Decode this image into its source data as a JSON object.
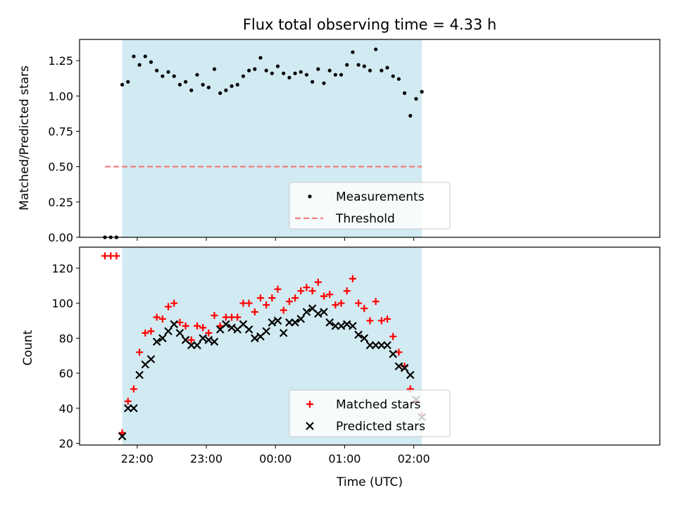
{
  "chart_data": [
    {
      "type": "scatter",
      "title": "Flux total observing time = 4.33 h",
      "xlabel": "",
      "ylabel": "Matched/Predicted stars",
      "ylim": [
        0,
        1.4
      ],
      "yticks": [
        "0.00",
        "0.25",
        "0.50",
        "0.75",
        "1.00",
        "1.25"
      ],
      "shaded_region": {
        "start": "21:47",
        "end": "02:07",
        "color": "#add8e6"
      },
      "legend": {
        "position": "lower-center",
        "entries": [
          "Measurements",
          "Threshold"
        ]
      },
      "series": [
        {
          "name": "Measurements",
          "marker": "dot",
          "color": "#000000",
          "points": [
            [
              "21:32",
              0.0
            ],
            [
              "21:37",
              0.0
            ],
            [
              "21:42",
              0.0
            ],
            [
              "21:47",
              1.08
            ],
            [
              "21:52",
              1.1
            ],
            [
              "21:57",
              1.28
            ],
            [
              "22:02",
              1.22
            ],
            [
              "22:07",
              1.28
            ],
            [
              "22:12",
              1.24
            ],
            [
              "22:17",
              1.18
            ],
            [
              "22:22",
              1.14
            ],
            [
              "22:27",
              1.17
            ],
            [
              "22:32",
              1.14
            ],
            [
              "22:37",
              1.08
            ],
            [
              "22:42",
              1.1
            ],
            [
              "22:47",
              1.04
            ],
            [
              "22:52",
              1.15
            ],
            [
              "22:57",
              1.08
            ],
            [
              "23:02",
              1.06
            ],
            [
              "23:07",
              1.19
            ],
            [
              "23:12",
              1.02
            ],
            [
              "23:17",
              1.04
            ],
            [
              "23:22",
              1.07
            ],
            [
              "23:27",
              1.08
            ],
            [
              "23:32",
              1.14
            ],
            [
              "23:37",
              1.18
            ],
            [
              "23:42",
              1.19
            ],
            [
              "23:47",
              1.27
            ],
            [
              "23:52",
              1.18
            ],
            [
              "23:57",
              1.16
            ],
            [
              "00:02",
              1.21
            ],
            [
              "00:07",
              1.16
            ],
            [
              "00:12",
              1.13
            ],
            [
              "00:17",
              1.16
            ],
            [
              "00:22",
              1.17
            ],
            [
              "00:27",
              1.15
            ],
            [
              "00:32",
              1.1
            ],
            [
              "00:37",
              1.19
            ],
            [
              "00:42",
              1.09
            ],
            [
              "00:47",
              1.18
            ],
            [
              "00:52",
              1.15
            ],
            [
              "00:57",
              1.15
            ],
            [
              "01:02",
              1.22
            ],
            [
              "01:07",
              1.31
            ],
            [
              "01:12",
              1.22
            ],
            [
              "01:17",
              1.21
            ],
            [
              "01:22",
              1.18
            ],
            [
              "01:27",
              1.33
            ],
            [
              "01:32",
              1.18
            ],
            [
              "01:37",
              1.2
            ],
            [
              "01:42",
              1.14
            ],
            [
              "01:47",
              1.12
            ],
            [
              "01:52",
              1.02
            ],
            [
              "01:57",
              0.86
            ],
            [
              "02:02",
              0.98
            ],
            [
              "02:07",
              1.03
            ]
          ]
        },
        {
          "name": "Threshold",
          "style": "dashed",
          "color": "#f08080",
          "x": [
            "21:32",
            "02:07"
          ],
          "y": [
            0.5,
            0.5
          ]
        }
      ]
    },
    {
      "type": "scatter",
      "title": "",
      "xlabel": "Time (UTC)",
      "ylabel": "Count",
      "ylim": [
        19,
        132
      ],
      "yticks": [
        "20",
        "40",
        "60",
        "80",
        "100",
        "120"
      ],
      "xticks": [
        "22:00",
        "23:00",
        "00:00",
        "01:00",
        "02:00"
      ],
      "shaded_region": {
        "start": "21:47",
        "end": "02:07",
        "color": "#add8e6"
      },
      "legend": {
        "position": "lower-center",
        "entries": [
          "Matched stars",
          "Predicted stars"
        ]
      },
      "series": [
        {
          "name": "Matched stars",
          "marker": "plus",
          "color": "#ff0000",
          "points": [
            [
              "21:32",
              127
            ],
            [
              "21:37",
              127
            ],
            [
              "21:42",
              127
            ],
            [
              "21:47",
              26
            ],
            [
              "21:52",
              44
            ],
            [
              "21:57",
              51
            ],
            [
              "22:02",
              72
            ],
            [
              "22:07",
              83
            ],
            [
              "22:12",
              84
            ],
            [
              "22:17",
              92
            ],
            [
              "22:22",
              91
            ],
            [
              "22:27",
              98
            ],
            [
              "22:32",
              100
            ],
            [
              "22:37",
              89
            ],
            [
              "22:42",
              87
            ],
            [
              "22:47",
              79
            ],
            [
              "22:52",
              87
            ],
            [
              "22:57",
              86
            ],
            [
              "23:02",
              83
            ],
            [
              "23:07",
              93
            ],
            [
              "23:12",
              87
            ],
            [
              "23:17",
              92
            ],
            [
              "23:22",
              92
            ],
            [
              "23:27",
              92
            ],
            [
              "23:32",
              100
            ],
            [
              "23:37",
              100
            ],
            [
              "23:42",
              95
            ],
            [
              "23:47",
              103
            ],
            [
              "23:52",
              99
            ],
            [
              "23:57",
              103
            ],
            [
              "00:02",
              108
            ],
            [
              "00:07",
              96
            ],
            [
              "00:12",
              101
            ],
            [
              "00:17",
              103
            ],
            [
              "00:22",
              107
            ],
            [
              "00:27",
              109
            ],
            [
              "00:32",
              107
            ],
            [
              "00:37",
              112
            ],
            [
              "00:42",
              104
            ],
            [
              "00:47",
              105
            ],
            [
              "00:52",
              99
            ],
            [
              "00:57",
              100
            ],
            [
              "01:02",
              107
            ],
            [
              "01:07",
              114
            ],
            [
              "01:12",
              100
            ],
            [
              "01:17",
              97
            ],
            [
              "01:22",
              90
            ],
            [
              "01:27",
              101
            ],
            [
              "01:32",
              90
            ],
            [
              "01:37",
              91
            ],
            [
              "01:42",
              81
            ],
            [
              "01:47",
              72
            ],
            [
              "01:52",
              64
            ],
            [
              "01:57",
              51
            ],
            [
              "02:02",
              44
            ],
            [
              "02:07",
              36
            ]
          ]
        },
        {
          "name": "Predicted stars",
          "marker": "x",
          "color": "#000000",
          "points": [
            [
              "21:47",
              24
            ],
            [
              "21:52",
              40
            ],
            [
              "21:57",
              40
            ],
            [
              "22:02",
              59
            ],
            [
              "22:07",
              65
            ],
            [
              "22:12",
              68
            ],
            [
              "22:17",
              78
            ],
            [
              "22:22",
              80
            ],
            [
              "22:27",
              84
            ],
            [
              "22:32",
              88
            ],
            [
              "22:37",
              83
            ],
            [
              "22:42",
              79
            ],
            [
              "22:47",
              76
            ],
            [
              "22:52",
              76
            ],
            [
              "22:57",
              80
            ],
            [
              "23:02",
              79
            ],
            [
              "23:07",
              78
            ],
            [
              "23:12",
              85
            ],
            [
              "23:17",
              88
            ],
            [
              "23:22",
              86
            ],
            [
              "23:27",
              85
            ],
            [
              "23:32",
              88
            ],
            [
              "23:37",
              85
            ],
            [
              "23:42",
              80
            ],
            [
              "23:47",
              81
            ],
            [
              "23:52",
              84
            ],
            [
              "23:57",
              89
            ],
            [
              "00:02",
              90
            ],
            [
              "00:07",
              83
            ],
            [
              "00:12",
              89
            ],
            [
              "00:17",
              89
            ],
            [
              "00:22",
              91
            ],
            [
              "00:27",
              95
            ],
            [
              "00:32",
              97
            ],
            [
              "00:37",
              94
            ],
            [
              "00:42",
              95
            ],
            [
              "00:47",
              89
            ],
            [
              "00:52",
              87
            ],
            [
              "00:57",
              87
            ],
            [
              "01:02",
              88
            ],
            [
              "01:07",
              87
            ],
            [
              "01:12",
              82
            ],
            [
              "01:17",
              80
            ],
            [
              "01:22",
              76
            ],
            [
              "01:27",
              76
            ],
            [
              "01:32",
              76
            ],
            [
              "01:37",
              76
            ],
            [
              "01:42",
              71
            ],
            [
              "01:47",
              64
            ],
            [
              "01:52",
              63
            ],
            [
              "01:57",
              59
            ],
            [
              "02:02",
              45
            ],
            [
              "02:07",
              35
            ]
          ]
        }
      ]
    }
  ]
}
